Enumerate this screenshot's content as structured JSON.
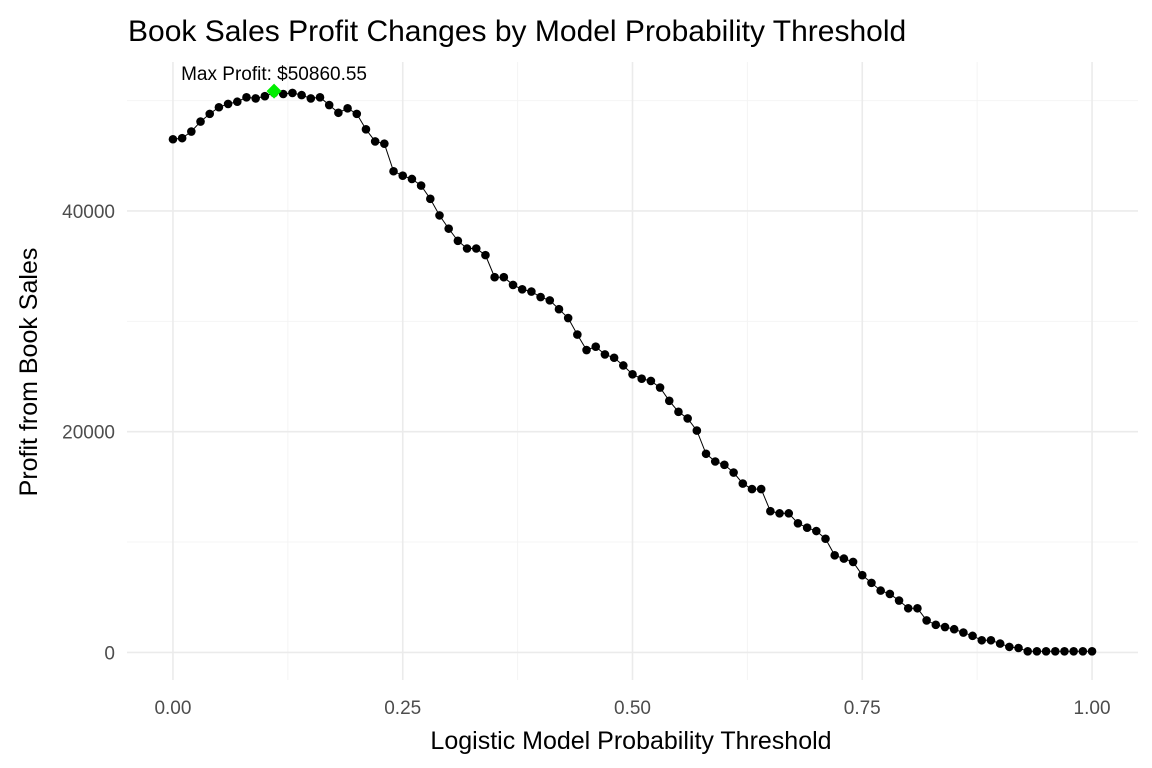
{
  "chart_data": {
    "type": "line",
    "title": "Book Sales Profit Changes by Model Probability Threshold",
    "xlabel": "Logistic Model Probability Threshold",
    "ylabel": "Profit from Book Sales",
    "xlim": [
      -0.05,
      1.05
    ],
    "ylim": [
      -2500,
      53500
    ],
    "x_ticks": [
      0.0,
      0.25,
      0.5,
      0.75,
      1.0
    ],
    "x_tick_labels": [
      "0.00",
      "0.25",
      "0.50",
      "0.75",
      "1.00"
    ],
    "y_ticks": [
      0,
      20000,
      40000
    ],
    "y_tick_labels": [
      "0",
      "20000",
      "40000"
    ],
    "grid": true,
    "legend": "none",
    "series": [
      {
        "color": "#000000",
        "x": [
          0.0,
          0.01,
          0.02,
          0.03,
          0.04,
          0.05,
          0.06,
          0.07,
          0.08,
          0.09,
          0.1,
          0.11,
          0.12,
          0.13,
          0.14,
          0.15,
          0.16,
          0.17,
          0.18,
          0.19,
          0.2,
          0.21,
          0.22,
          0.23,
          0.24,
          0.25,
          0.26,
          0.27,
          0.28,
          0.29,
          0.3,
          0.31,
          0.32,
          0.33,
          0.34,
          0.35,
          0.36,
          0.37,
          0.38,
          0.39,
          0.4,
          0.41,
          0.42,
          0.43,
          0.44,
          0.45,
          0.46,
          0.47,
          0.48,
          0.49,
          0.5,
          0.51,
          0.52,
          0.53,
          0.54,
          0.55,
          0.56,
          0.57,
          0.58,
          0.59,
          0.6,
          0.61,
          0.62,
          0.63,
          0.64,
          0.65,
          0.66,
          0.67,
          0.68,
          0.69,
          0.7,
          0.71,
          0.72,
          0.73,
          0.74,
          0.75,
          0.76,
          0.77,
          0.78,
          0.79,
          0.8,
          0.81,
          0.82,
          0.83,
          0.84,
          0.85,
          0.86,
          0.87,
          0.88,
          0.89,
          0.9,
          0.91,
          0.92,
          0.93,
          0.94,
          0.95,
          0.96,
          0.97,
          0.98,
          0.99,
          1.0
        ],
        "y": [
          46500,
          46600,
          47200,
          48100,
          48800,
          49400,
          49700,
          49900,
          50300,
          50200,
          50400,
          50700,
          50600,
          50700,
          50500,
          50200,
          50300,
          49600,
          48900,
          49300,
          48800,
          47400,
          46300,
          46100,
          43600,
          43200,
          42900,
          42300,
          41100,
          39600,
          38400,
          37300,
          36600,
          36600,
          36000,
          34000,
          34000,
          33300,
          32900,
          32700,
          32200,
          31900,
          31100,
          30300,
          28800,
          27400,
          27700,
          27000,
          26700,
          26000,
          25200,
          24800,
          24600,
          24000,
          22800,
          21800,
          21200,
          20100,
          18000,
          17300,
          17000,
          16300,
          15300,
          14800,
          14800,
          12800,
          12600,
          12600,
          11700,
          11300,
          11000,
          10300,
          8800,
          8500,
          8200,
          7000,
          6300,
          5600,
          5300,
          4700,
          4000,
          4000,
          2900,
          2500,
          2300,
          2100,
          1800,
          1500,
          1100,
          1100,
          800,
          500,
          400,
          100,
          100,
          100,
          100,
          100,
          100,
          100,
          100
        ]
      }
    ],
    "highlight": {
      "x": 0.11,
      "y": 50860.55,
      "color": "#00ee00",
      "marker": "diamond",
      "label": "Max Profit: $50860.55"
    }
  }
}
